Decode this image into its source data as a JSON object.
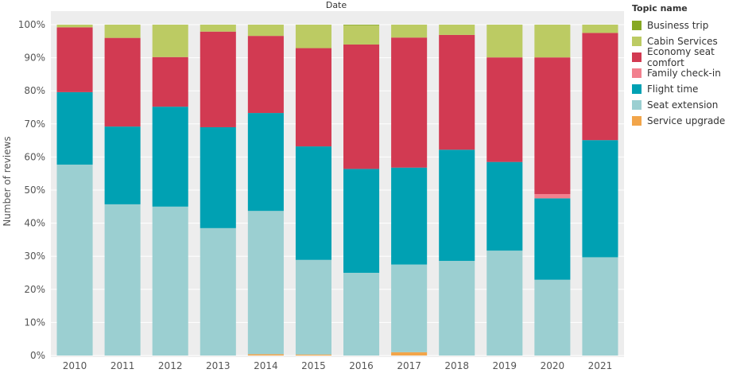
{
  "chart_data": {
    "type": "bar",
    "stacked": true,
    "normalized": true,
    "title": "Date",
    "xlabel": "",
    "ylabel": "Number of reviews",
    "ylim": [
      0,
      100
    ],
    "yticks": [
      "0%",
      "10%",
      "20%",
      "30%",
      "40%",
      "50%",
      "60%",
      "70%",
      "80%",
      "90%",
      "100%"
    ],
    "categories": [
      "2010",
      "2011",
      "2012",
      "2013",
      "2014",
      "2015",
      "2016",
      "2017",
      "2018",
      "2019",
      "2020",
      "2021"
    ],
    "series": [
      {
        "name": "Service upgrade",
        "color": "#f2a54a",
        "values": [
          0,
          0,
          0,
          0,
          0.4,
          0.3,
          0,
          1.0,
          0,
          0,
          0,
          0
        ]
      },
      {
        "name": "Seat extension",
        "color": "#9bcfd1",
        "values": [
          57.7,
          45.7,
          45.0,
          38.5,
          43.3,
          28.6,
          25.0,
          26.5,
          28.6,
          31.7,
          22.9,
          29.7
        ]
      },
      {
        "name": "Flight time",
        "color": "#00a1b3",
        "values": [
          21.9,
          23.5,
          30.2,
          30.5,
          29.6,
          34.3,
          31.4,
          29.3,
          33.6,
          26.8,
          24.6,
          35.4
        ]
      },
      {
        "name": "Family check-in",
        "color": "#f2808e",
        "values": [
          0,
          0,
          0,
          0,
          0,
          0,
          0,
          0,
          0,
          0,
          1.3,
          0
        ]
      },
      {
        "name": "Economy seat comfort",
        "color": "#d23a52",
        "values": [
          19.6,
          26.8,
          15.0,
          28.9,
          23.3,
          29.7,
          37.6,
          39.3,
          34.7,
          31.6,
          41.3,
          32.4
        ]
      },
      {
        "name": "Cabin Services",
        "color": "#bccb63",
        "values": [
          0.8,
          4.0,
          9.8,
          2.1,
          3.4,
          7.1,
          5.8,
          3.9,
          3.1,
          9.9,
          9.9,
          2.5
        ]
      },
      {
        "name": "Business trip",
        "color": "#86a823",
        "values": [
          0,
          0,
          0,
          0,
          0,
          0,
          0.2,
          0,
          0,
          0,
          0,
          0
        ]
      }
    ],
    "grid": true,
    "legend_position": "right"
  },
  "legend": {
    "title": "Topic name",
    "items": [
      {
        "label": "Business trip",
        "color": "#86a823"
      },
      {
        "label": "Cabin Services",
        "color": "#bccb63"
      },
      {
        "label": "Economy seat comfort",
        "color": "#d23a52"
      },
      {
        "label": "Family check-in",
        "color": "#f2808e"
      },
      {
        "label": "Flight time",
        "color": "#00a1b3"
      },
      {
        "label": "Seat extension",
        "color": "#9bcfd1"
      },
      {
        "label": "Service upgrade",
        "color": "#f2a54a"
      }
    ]
  }
}
